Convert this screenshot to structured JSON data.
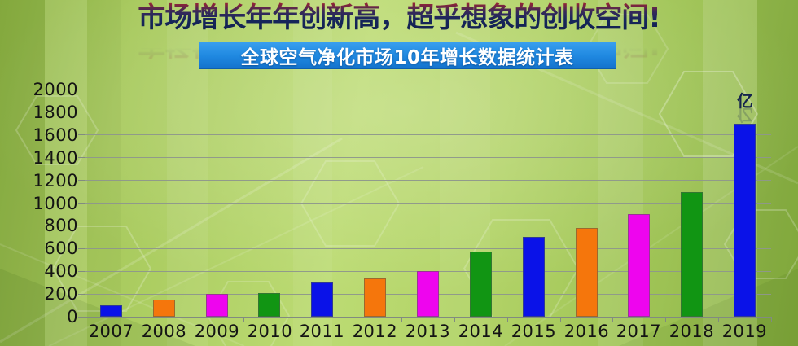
{
  "header": {
    "title": "市场增长年年创新高，超乎想象的创收空间!",
    "banner": "全球空气净化市场10年增长数据统计表"
  },
  "chart_data": {
    "type": "bar",
    "title": "全球空气净化市场10年增长数据统计表",
    "categories": [
      "2007",
      "2008",
      "2009",
      "2010",
      "2011",
      "2012",
      "2013",
      "2014",
      "2015",
      "2016",
      "2017",
      "2018",
      "2019"
    ],
    "values": [
      100,
      150,
      200,
      210,
      300,
      340,
      400,
      570,
      700,
      780,
      900,
      1100,
      1700
    ],
    "bar_colors": [
      "#0a12e8",
      "#f5760c",
      "#ee05ee",
      "#119513",
      "#0a12e8",
      "#f5760c",
      "#ee05ee",
      "#119513",
      "#0a12e8",
      "#f5760c",
      "#ee05ee",
      "#119513",
      "#0a12e8"
    ],
    "unit": "亿",
    "xlabel": "",
    "ylabel": "",
    "ylim": [
      0,
      2000
    ],
    "ytick_step": 200,
    "yticks": [
      0,
      200,
      400,
      600,
      800,
      1000,
      1200,
      1400,
      1600,
      1800,
      2000
    ],
    "grid": true,
    "legend": false
  },
  "colors": {
    "banner_bg": "#1f88e0",
    "banner_text": "#ffffff",
    "title_top": "#e23418",
    "title_bottom": "#101f48",
    "axis": "#818b80",
    "gridline": "#8e978c",
    "tick_label": "#141414",
    "background_green": "#aacb5e"
  }
}
